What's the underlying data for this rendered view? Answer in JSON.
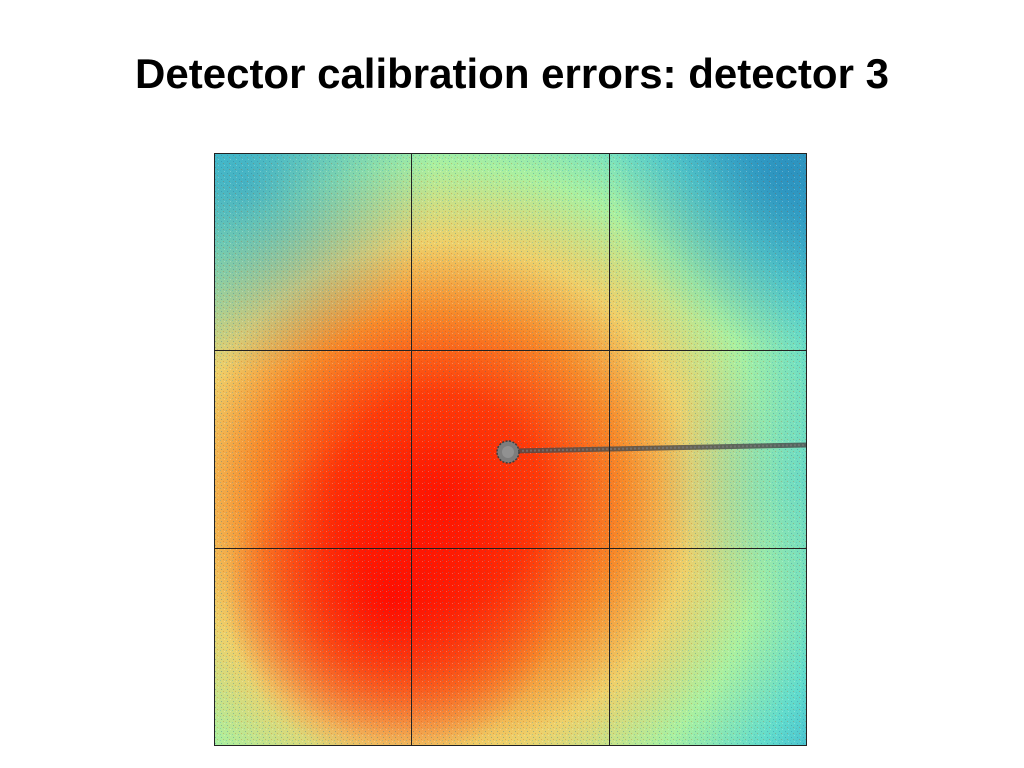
{
  "slide": {
    "title": "Detector calibration errors: detector 3"
  },
  "detector_image": {
    "colormap": "jet",
    "panel_grid": "3x3",
    "colors": {
      "low": "#1e8fc0",
      "mid_low": "#59d6d0",
      "mid": "#a8f09c",
      "mid_high": "#f0c85a",
      "high": "#ff1a00",
      "panel_lines": "#222222",
      "beam_stop": "#555555"
    }
  }
}
